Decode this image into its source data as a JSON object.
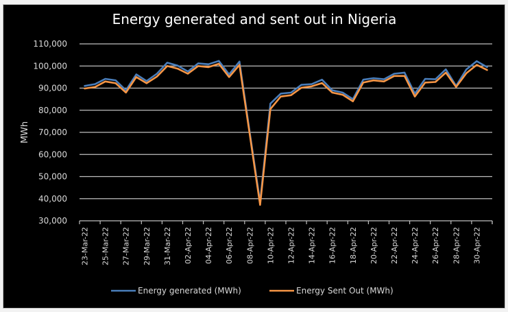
{
  "chart_data": {
    "type": "line",
    "title": "Energy generated and sent out in Nigeria",
    "xlabel": "",
    "ylabel": "MWh",
    "ylim": [
      30000,
      110000
    ],
    "yticks": [
      30000,
      40000,
      50000,
      60000,
      70000,
      80000,
      90000,
      100000,
      110000
    ],
    "ytick_labels": [
      "30,000",
      "40,000",
      "50,000",
      "60,000",
      "70,000",
      "80,000",
      "90,000",
      "100,000",
      "110,000"
    ],
    "grid": true,
    "legend_position": "bottom",
    "x": [
      "23-Mar-22",
      "24-Mar-22",
      "25-Mar-22",
      "26-Mar-22",
      "27-Mar-22",
      "28-Mar-22",
      "29-Mar-22",
      "30-Mar-22",
      "31-Mar-22",
      "01-Apr-22",
      "02-Apr-22",
      "03-Apr-22",
      "04-Apr-22",
      "05-Apr-22",
      "06-Apr-22",
      "07-Apr-22",
      "08-Apr-22",
      "09-Apr-22",
      "10-Apr-22",
      "11-Apr-22",
      "12-Apr-22",
      "13-Apr-22",
      "14-Apr-22",
      "15-Apr-22",
      "16-Apr-22",
      "17-Apr-22",
      "18-Apr-22",
      "19-Apr-22",
      "20-Apr-22",
      "21-Apr-22",
      "22-Apr-22",
      "23-Apr-22",
      "24-Apr-22",
      "25-Apr-22",
      "26-Apr-22",
      "27-Apr-22",
      "28-Apr-22",
      "29-Apr-22",
      "30-Apr-22",
      "01-May-22"
    ],
    "xtick_labels": [
      "23-Mar-22",
      "25-Mar-22",
      "27-Mar-22",
      "29-Mar-22",
      "31-Mar-22",
      "02-Apr-22",
      "04-Apr-22",
      "06-Apr-22",
      "08-Apr-22",
      "10-Apr-22",
      "12-Apr-22",
      "14-Apr-22",
      "16-Apr-22",
      "18-Apr-22",
      "20-Apr-22",
      "22-Apr-22",
      "24-Apr-22",
      "26-Apr-22",
      "28-Apr-22",
      "30-Apr-22"
    ],
    "series": [
      {
        "name": "Energy generated (MWh)",
        "color": "#4a7ebb",
        "values": [
          91000,
          91800,
          94200,
          93500,
          89000,
          96200,
          93200,
          96500,
          101500,
          100200,
          97500,
          101200,
          100800,
          102300,
          96200,
          102000,
          70000,
          38500,
          83000,
          87500,
          88000,
          91500,
          91800,
          93800,
          89000,
          88000,
          85000,
          93800,
          94500,
          94000,
          96500,
          97000,
          87500,
          94200,
          94000,
          98500,
          91000,
          98500,
          102200,
          99500
        ],
        "linestyle": "solid"
      },
      {
        "name": "Energy Sent Out (MWh)",
        "color": "#f79646",
        "values": [
          89800,
          90500,
          93000,
          92200,
          88000,
          95000,
          92200,
          95200,
          100000,
          98800,
          96500,
          100000,
          99500,
          101000,
          95000,
          100500,
          69000,
          37200,
          80500,
          86200,
          86800,
          90200,
          90800,
          92300,
          88000,
          87000,
          84000,
          92500,
          93500,
          93000,
          95500,
          95500,
          86200,
          92500,
          92800,
          97000,
          90500,
          96800,
          100500,
          98200
        ],
        "linestyle": "solid"
      }
    ]
  }
}
